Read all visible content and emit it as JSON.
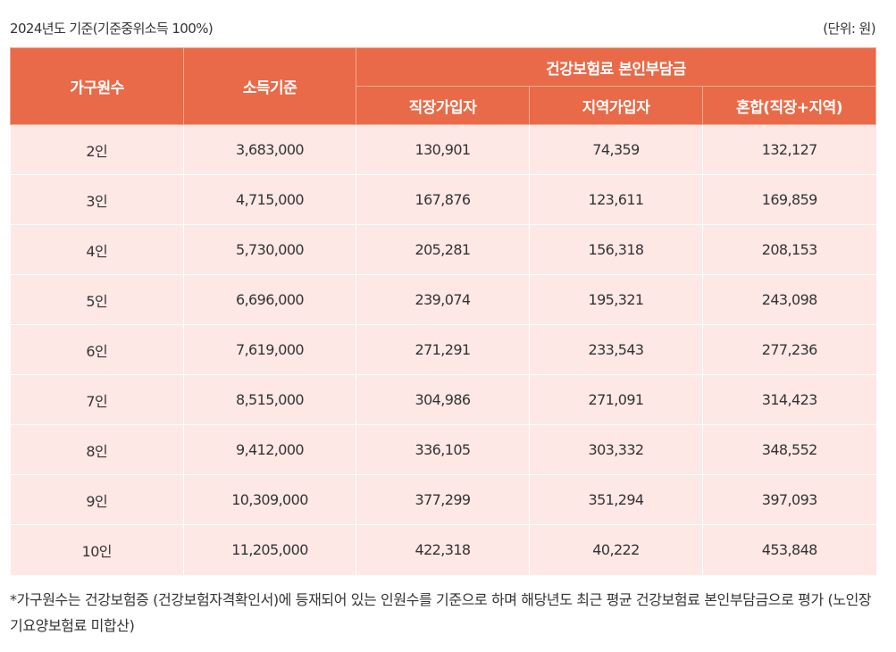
{
  "caption": {
    "left": "2024년도 기준(기준중위소득 100%)",
    "right": "(단위: 원)"
  },
  "table": {
    "headers": {
      "household": "가구원수",
      "income": "소득기준",
      "premium_group": "건강보험료 본인부담금",
      "employee": "직장가입자",
      "regional": "지역가입자",
      "mixed": "혼합(직장+지역)"
    },
    "rows": [
      {
        "household": "2인",
        "income": "3,683,000",
        "employee": "130,901",
        "regional": "74,359",
        "mixed": "132,127"
      },
      {
        "household": "3인",
        "income": "4,715,000",
        "employee": "167,876",
        "regional": "123,611",
        "mixed": "169,859"
      },
      {
        "household": "4인",
        "income": "5,730,000",
        "employee": "205,281",
        "regional": "156,318",
        "mixed": "208,153"
      },
      {
        "household": "5인",
        "income": "6,696,000",
        "employee": "239,074",
        "regional": "195,321",
        "mixed": "243,098"
      },
      {
        "household": "6인",
        "income": "7,619,000",
        "employee": "271,291",
        "regional": "233,543",
        "mixed": "277,236"
      },
      {
        "household": "7인",
        "income": "8,515,000",
        "employee": "304,986",
        "regional": "271,091",
        "mixed": "314,423"
      },
      {
        "household": "8인",
        "income": "9,412,000",
        "employee": "336,105",
        "regional": "303,332",
        "mixed": "348,552"
      },
      {
        "household": "9인",
        "income": "10,309,000",
        "employee": "377,299",
        "regional": "351,294",
        "mixed": "397,093"
      },
      {
        "household": "10인",
        "income": "11,205,000",
        "employee": "422,318",
        "regional": "40,222",
        "mixed": "453,848"
      }
    ]
  },
  "note": "*가구원수는 건강보험증 (건강보험자격확인서)에 등재되어 있는 인원수를 기준으로 하며 해당년도 최근 평균 건강보험료 본인부담금으로 평가 (노인장기요양보험료 미합산)",
  "colors": {
    "header_bg": "#e86a48",
    "cell_bg": "#fde8e6",
    "text": "#333333"
  }
}
